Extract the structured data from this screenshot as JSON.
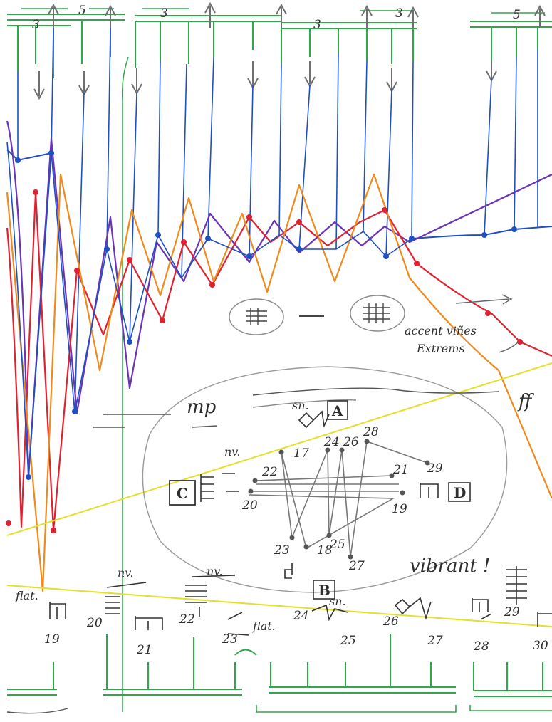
{
  "colors": {
    "blue": "#1f4fc4",
    "red": "#e0212f",
    "orange": "#f08a1c",
    "purple": "#6a34b8",
    "green": "#2fa84a",
    "yellow": "#e3df2a",
    "gray": "#8a8a8a",
    "ink": "#2e2e2e"
  },
  "annotations": {
    "triplet_marks": [
      "3",
      "5",
      "3",
      "3",
      "3",
      "5"
    ],
    "accent_note_line1": "accent viñes",
    "accent_note_line2": "Extrems",
    "dynamic_mp": "mp",
    "dynamic_ff": "ff",
    "nv_labels": [
      "nv.",
      "nv.",
      "nv."
    ],
    "sn_labels": [
      "sn.",
      "sn."
    ],
    "flat_labels": [
      "flat.",
      "flat."
    ],
    "vibrant": "vibrant !"
  },
  "boxes": {
    "a": "A",
    "b": "B",
    "c": "C",
    "d": "D"
  },
  "ellipse_numbers": [
    "17",
    "24",
    "26",
    "28",
    "29",
    "22",
    "21",
    "20",
    "19",
    "23",
    "18",
    "25",
    "27"
  ],
  "bottom_numbers": [
    "19",
    "20",
    "21",
    "22",
    "23",
    "24",
    "25",
    "26",
    "27",
    "28",
    "29",
    "30"
  ]
}
